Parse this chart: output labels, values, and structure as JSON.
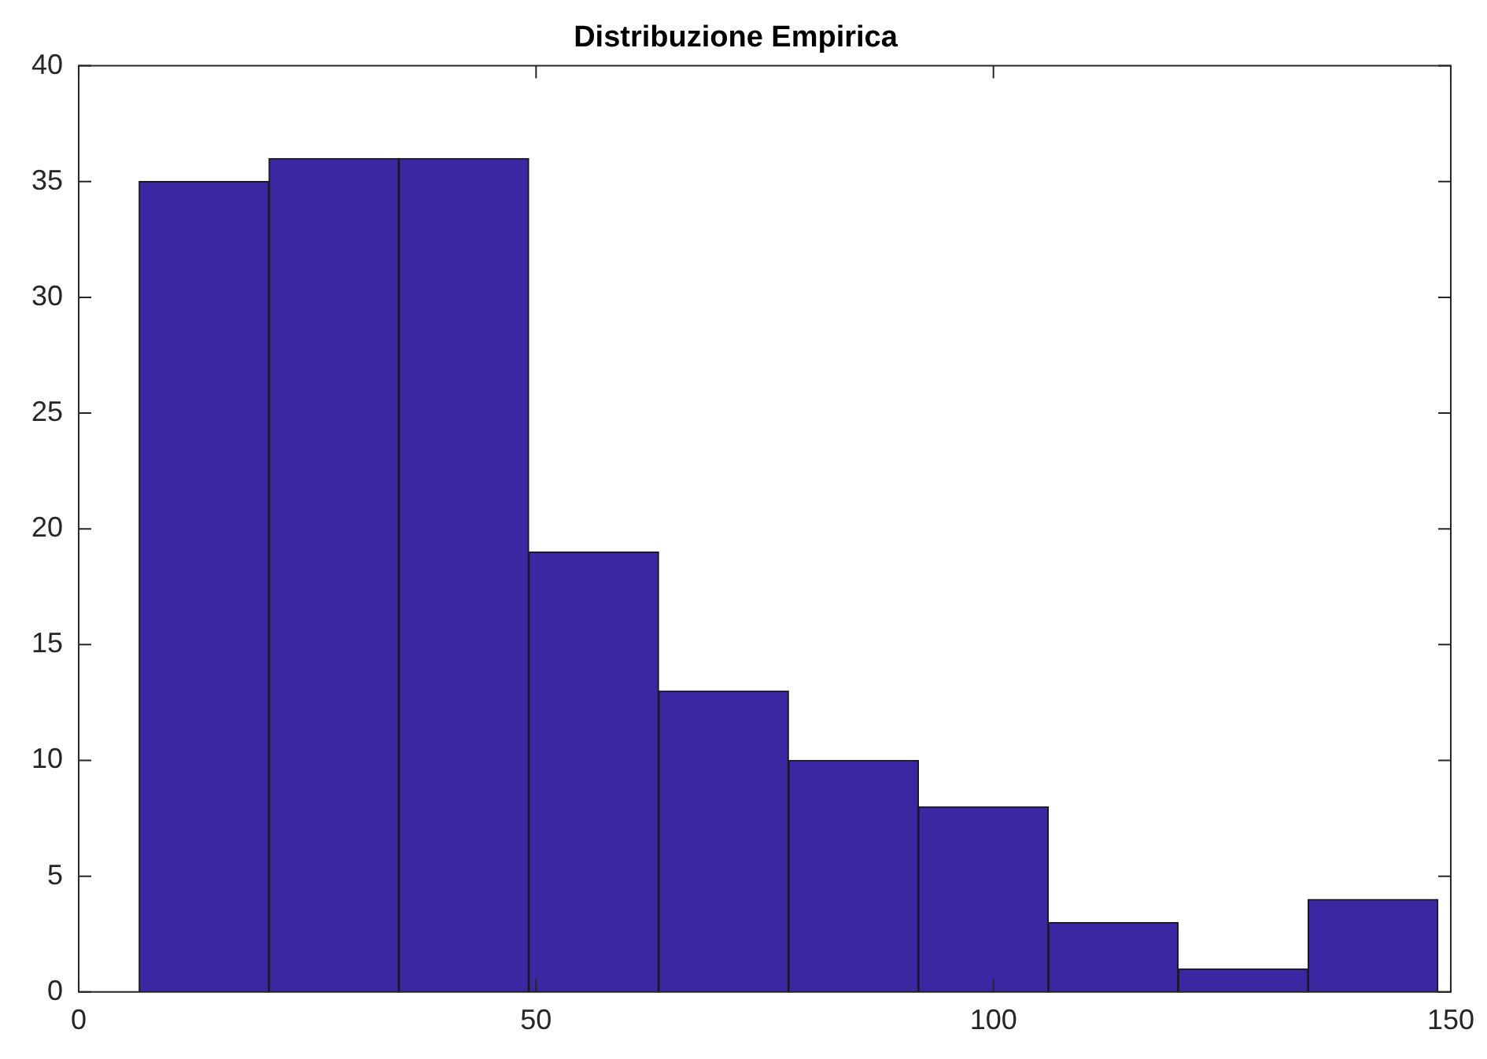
{
  "chart_data": {
    "type": "histogram",
    "title": "Distribuzione Empirica",
    "bins": [
      6.6,
      20.8,
      35,
      49.2,
      63.4,
      77.6,
      91.8,
      106,
      120.2,
      134.4,
      148.6
    ],
    "values": [
      35,
      36,
      36,
      19,
      13,
      10,
      8,
      3,
      1,
      4
    ],
    "color": "#3a28a2",
    "xlim": [
      0,
      150
    ],
    "xticks": [
      0,
      50,
      100,
      150
    ],
    "ylim": [
      0,
      40
    ],
    "yticks": [
      0,
      5,
      10,
      15,
      20,
      25,
      30,
      35,
      40
    ],
    "grid": false,
    "legend": false
  }
}
